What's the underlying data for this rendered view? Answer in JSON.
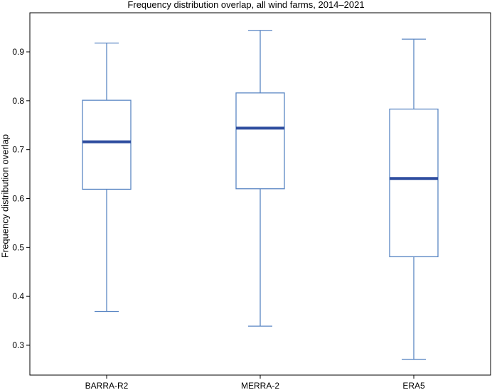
{
  "chart_data": {
    "type": "box",
    "title": "Frequency distribution overlap, all wind farms, 2014–2021",
    "xlabel": "",
    "ylabel": "Frequency distribution overlap",
    "ylim": [
      0.25,
      0.96
    ],
    "yticks": [
      0.3,
      0.4,
      0.5,
      0.6,
      0.7,
      0.8,
      0.9
    ],
    "ytick_labels": [
      "0.3",
      "0.4",
      "0.5",
      "0.6",
      "0.7",
      "0.8",
      "0.9"
    ],
    "categories": [
      "BARRA-R2",
      "MERRA-2",
      "ERA5"
    ],
    "boxes": [
      {
        "label": "BARRA-R2",
        "whisker_low": 0.369,
        "q1": 0.619,
        "median": 0.716,
        "q3": 0.801,
        "whisker_high": 0.918
      },
      {
        "label": "MERRA-2",
        "whisker_low": 0.339,
        "q1": 0.62,
        "median": 0.744,
        "q3": 0.816,
        "whisker_high": 0.944
      },
      {
        "label": "ERA5",
        "whisker_low": 0.271,
        "q1": 0.481,
        "median": 0.641,
        "q3": 0.783,
        "whisker_high": 0.926
      }
    ],
    "grid": false,
    "colors": {
      "box": "#5b87c4",
      "median": "#2e4d9f",
      "axis": "#000000"
    }
  }
}
